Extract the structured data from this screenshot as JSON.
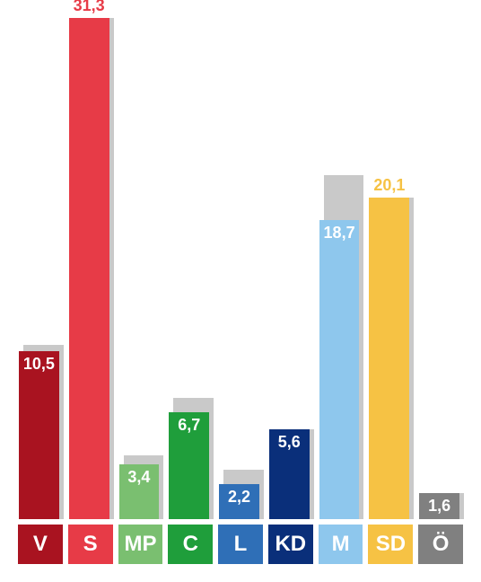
{
  "chart": {
    "type": "bar",
    "background_color": "#ffffff",
    "shadow_color": "#c9c9c9",
    "shadow_offset_pct": 10,
    "y_max": 31.3,
    "value_fontsize": 18,
    "value_fontweight": 700,
    "value_color": "#ffffff",
    "axis_label_fontsize": 24,
    "axis_label_fontweight": 700,
    "axis_label_color": "#ffffff",
    "bar_width_pct": 90,
    "parties": [
      {
        "code": "V",
        "value": "10,5",
        "num": 10.5,
        "shadow_num": 10.9,
        "color": "#a91320",
        "label_dark": false,
        "above": false
      },
      {
        "code": "S",
        "value": "31,3",
        "num": 31.3,
        "shadow_num": 31.3,
        "color": "#e73b47",
        "label_dark": false,
        "above": true
      },
      {
        "code": "MP",
        "value": "3,4",
        "num": 3.4,
        "shadow_num": 4.0,
        "color": "#7abf70",
        "label_dark": false,
        "above": false
      },
      {
        "code": "C",
        "value": "6,7",
        "num": 6.7,
        "shadow_num": 7.6,
        "color": "#1f9e3b",
        "label_dark": false,
        "above": false
      },
      {
        "code": "L",
        "value": "2,2",
        "num": 2.2,
        "shadow_num": 3.1,
        "color": "#2f6fb7",
        "label_dark": false,
        "above": false
      },
      {
        "code": "KD",
        "value": "5,6",
        "num": 5.6,
        "shadow_num": 5.6,
        "color": "#0a2f7a",
        "label_dark": false,
        "above": false
      },
      {
        "code": "M",
        "value": "18,7",
        "num": 18.7,
        "shadow_num": 21.5,
        "color": "#8ec7ed",
        "label_dark": false,
        "above": false
      },
      {
        "code": "SD",
        "value": "20,1",
        "num": 20.1,
        "shadow_num": 20.1,
        "color": "#f6c244",
        "label_dark": false,
        "above": true
      },
      {
        "code": "Ö",
        "value": "1,6",
        "num": 1.6,
        "shadow_num": 1.6,
        "color": "#808080",
        "label_dark": false,
        "above": false
      }
    ]
  }
}
